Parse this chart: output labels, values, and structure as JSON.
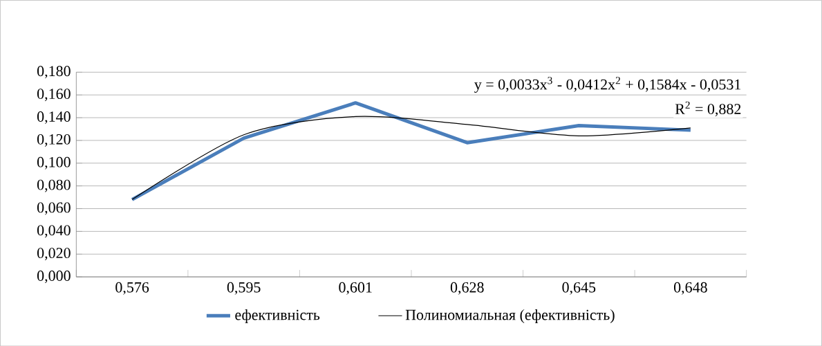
{
  "chart_data": {
    "type": "line",
    "categories": [
      "0,576",
      "0,595",
      "0,601",
      "0,628",
      "0,645",
      "0,648"
    ],
    "series": [
      {
        "name": "ефективність",
        "color": "#4a7ebb",
        "values": [
          0.068,
          0.122,
          0.153,
          0.118,
          0.133,
          0.129
        ]
      },
      {
        "name": "Полиномиальная (ефективність)",
        "color": "#000000",
        "type": "line",
        "x": [
          "0,576",
          "0,595",
          "0,601",
          "0,628",
          "0,645",
          "0,648"
        ],
        "values": [
          0.068,
          0.125,
          0.141,
          0.134,
          0.124,
          0.131
        ]
      }
    ],
    "ylim": [
      0,
      0.18
    ],
    "yticks": [
      {
        "value": 0,
        "label": "0,000"
      },
      {
        "value": 0.02,
        "label": "0,020"
      },
      {
        "value": 0.04,
        "label": "0,040"
      },
      {
        "value": 0.06,
        "label": "0,060"
      },
      {
        "value": 0.08,
        "label": "0,080"
      },
      {
        "value": 0.1,
        "label": "0,100"
      },
      {
        "value": 0.12,
        "label": "0,120"
      },
      {
        "value": 0.14,
        "label": "0,140"
      },
      {
        "value": 0.16,
        "label": "0,160"
      },
      {
        "value": 0.18,
        "label": "0,180"
      }
    ],
    "grid": "y",
    "legend": "bottom",
    "annotations": [
      "y = 0,0033x$^{3}$ - 0,0412x$^{2}$ + 0,1584x - 0,0531",
      "R$^{2}$ = 0,882"
    ]
  }
}
